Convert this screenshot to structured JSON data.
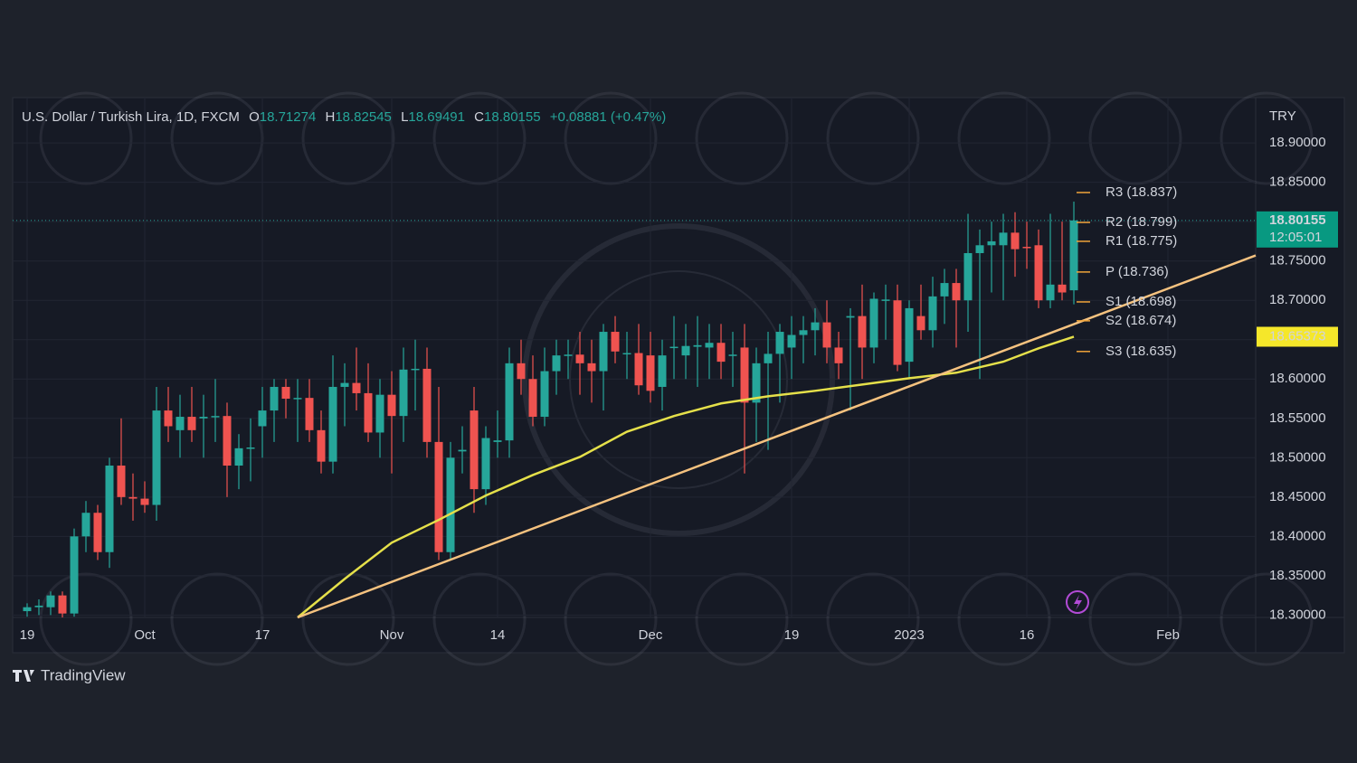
{
  "chart_data": {
    "type": "candlestick",
    "symbol": "U.S. Dollar / Turkish Lira, 1D, FXCM",
    "ohlc_labels": [
      "O",
      "H",
      "L",
      "C"
    ],
    "change": "+0.08881 (+0.47%)",
    "currency": "TRY",
    "countdown": "12:05:01",
    "brand": "TradingView",
    "up_color": "#26a69a",
    "down_color": "#ef5350",
    "open": [
      18.305,
      18.31,
      18.31,
      18.325,
      18.302,
      18.4,
      18.43,
      18.38,
      18.49,
      18.45,
      18.448,
      18.44,
      18.56,
      18.535,
      18.552,
      18.55,
      18.552,
      18.553,
      18.49,
      18.512,
      18.54,
      18.56,
      18.59,
      18.575,
      18.576,
      18.535,
      18.495,
      18.59,
      18.595,
      18.582,
      18.532,
      18.58,
      18.553,
      18.612,
      18.613,
      18.52,
      18.38,
      18.508,
      18.56,
      18.46,
      18.52,
      18.522,
      18.62,
      18.6,
      18.552,
      18.61,
      18.63,
      18.631,
      18.62,
      18.61,
      18.66,
      18.632,
      18.633,
      18.63,
      18.59,
      18.64,
      18.63,
      18.641,
      18.64,
      18.646,
      18.63,
      18.64,
      18.57,
      18.62,
      18.632,
      18.64,
      18.656,
      18.662,
      18.672,
      18.64,
      18.678,
      18.68,
      18.64,
      18.7,
      18.7,
      18.622,
      18.68,
      18.662,
      18.705,
      18.722,
      18.7,
      18.76,
      18.77,
      18.77,
      18.786,
      18.768,
      18.77,
      18.7,
      18.72,
      18.71274
    ],
    "high": [
      18.315,
      18.32,
      18.33,
      18.33,
      18.41,
      18.445,
      18.44,
      18.5,
      18.55,
      18.48,
      18.47,
      18.59,
      18.59,
      18.58,
      18.59,
      18.58,
      18.6,
      18.57,
      18.53,
      18.55,
      18.59,
      18.6,
      18.6,
      18.6,
      18.6,
      18.56,
      18.63,
      18.62,
      18.64,
      18.62,
      18.6,
      18.61,
      18.64,
      18.65,
      18.64,
      18.59,
      18.52,
      18.54,
      18.59,
      18.54,
      18.56,
      18.64,
      18.65,
      18.63,
      18.64,
      18.65,
      18.65,
      18.66,
      18.65,
      18.67,
      18.68,
      18.66,
      18.67,
      18.66,
      18.65,
      18.68,
      18.67,
      18.68,
      18.67,
      18.67,
      18.66,
      18.67,
      18.64,
      18.66,
      18.67,
      18.68,
      18.68,
      18.69,
      18.7,
      18.66,
      18.69,
      18.72,
      18.71,
      18.72,
      18.72,
      18.7,
      18.72,
      18.73,
      18.74,
      18.74,
      18.81,
      18.79,
      18.8,
      18.81,
      18.812,
      18.8,
      18.79,
      18.81,
      18.8,
      18.82545
    ],
    "low": [
      18.298,
      18.3,
      18.3,
      18.297,
      18.298,
      18.38,
      18.37,
      18.36,
      18.44,
      18.42,
      18.43,
      18.42,
      18.52,
      18.5,
      18.52,
      18.5,
      18.52,
      18.45,
      18.46,
      18.47,
      18.5,
      18.52,
      18.55,
      18.52,
      18.52,
      18.48,
      18.48,
      18.54,
      18.56,
      18.52,
      18.5,
      18.48,
      18.52,
      18.56,
      18.5,
      18.37,
      18.37,
      18.48,
      18.43,
      18.44,
      18.5,
      18.5,
      18.58,
      18.54,
      18.54,
      18.58,
      18.6,
      18.58,
      18.57,
      18.56,
      18.62,
      18.6,
      18.58,
      18.57,
      18.56,
      18.6,
      18.6,
      18.59,
      18.6,
      18.6,
      18.59,
      18.48,
      18.52,
      18.51,
      18.57,
      18.6,
      18.62,
      18.63,
      18.62,
      18.6,
      18.56,
      18.6,
      18.62,
      18.65,
      18.61,
      18.6,
      18.65,
      18.64,
      18.67,
      18.64,
      18.66,
      18.6,
      18.71,
      18.7,
      18.73,
      18.74,
      18.69,
      18.69,
      18.7,
      18.69491
    ],
    "close": [
      18.31,
      18.312,
      18.325,
      18.302,
      18.4,
      18.43,
      18.38,
      18.49,
      18.45,
      18.448,
      18.44,
      18.56,
      18.54,
      18.552,
      18.535,
      18.552,
      18.553,
      18.49,
      18.512,
      18.513,
      18.56,
      18.59,
      18.575,
      18.576,
      18.535,
      18.495,
      18.59,
      18.595,
      18.582,
      18.532,
      18.58,
      18.553,
      18.612,
      18.613,
      18.52,
      18.38,
      18.5,
      18.51,
      18.46,
      18.525,
      18.522,
      18.62,
      18.6,
      18.552,
      18.61,
      18.63,
      18.631,
      18.62,
      18.61,
      18.66,
      18.635,
      18.633,
      18.592,
      18.585,
      18.63,
      18.641,
      18.642,
      18.643,
      18.646,
      18.622,
      18.631,
      18.57,
      18.62,
      18.632,
      18.66,
      18.656,
      18.662,
      18.672,
      18.64,
      18.62,
      18.68,
      18.64,
      18.702,
      18.701,
      18.618,
      18.69,
      18.662,
      18.705,
      18.722,
      18.7,
      18.76,
      18.77,
      18.775,
      18.786,
      18.765,
      18.767,
      18.7,
      18.72,
      18.71,
      18.80155
    ],
    "moving_average": {
      "color": "#e5e04a",
      "x": [
        23,
        27,
        31,
        35,
        39,
        43,
        47,
        51,
        55,
        59,
        63,
        67,
        71,
        75,
        79,
        83,
        86,
        89
      ],
      "values": [
        18.297,
        18.346,
        18.392,
        18.421,
        18.452,
        18.478,
        18.501,
        18.533,
        18.553,
        18.569,
        18.578,
        18.585,
        18.593,
        18.601,
        18.608,
        18.622,
        18.639,
        18.65373
      ]
    },
    "trendline": {
      "color": "#f5c27f",
      "x": [
        23,
        104.46
      ],
      "values": [
        18.297,
        18.757
      ]
    },
    "pivot_color": "#f0a43a",
    "pivots": [
      {
        "value": 18.837,
        "label": "R3 (18.837)"
      },
      {
        "value": 18.799,
        "label": "R2 (18.799)"
      },
      {
        "value": 18.775,
        "label": "R1 (18.775)"
      },
      {
        "value": 18.736,
        "label": "P (18.736)"
      },
      {
        "value": 18.698,
        "label": "S1 (18.698)"
      },
      {
        "value": 18.674,
        "label": "S2 (18.674)"
      },
      {
        "value": 18.635,
        "label": "S3 (18.635)"
      }
    ],
    "xlim": [
      -1.23,
      104.46
    ],
    "xticks": [
      {
        "value": 0,
        "label": "19"
      },
      {
        "value": 10,
        "label": "Oct"
      },
      {
        "value": 20,
        "label": "17"
      },
      {
        "value": 31,
        "label": "Nov"
      },
      {
        "value": 40,
        "label": "14"
      },
      {
        "value": 53,
        "label": "Dec"
      },
      {
        "value": 65,
        "label": "19"
      },
      {
        "value": 75,
        "label": "2023"
      },
      {
        "value": 85,
        "label": "16"
      },
      {
        "value": 97,
        "label": "Feb"
      }
    ],
    "ylim": [
      18.297,
      18.953
    ],
    "yticks": [
      {
        "value": 18.3,
        "label": "18.30000"
      },
      {
        "value": 18.35,
        "label": "18.35000"
      },
      {
        "value": 18.4,
        "label": "18.40000"
      },
      {
        "value": 18.45,
        "label": "18.45000"
      },
      {
        "value": 18.5,
        "label": "18.50000"
      },
      {
        "value": 18.55,
        "label": "18.55000"
      },
      {
        "value": 18.6,
        "label": "18.60000"
      },
      {
        "value": 18.65,
        "label": "18.65000"
      },
      {
        "value": 18.7,
        "label": "18.70000"
      },
      {
        "value": 18.75,
        "label": "18.75000"
      },
      {
        "value": 18.8,
        "label": "18.80000"
      },
      {
        "value": 18.85,
        "label": "18.85000"
      },
      {
        "value": 18.9,
        "label": "18.90000"
      }
    ],
    "grid": true
  }
}
